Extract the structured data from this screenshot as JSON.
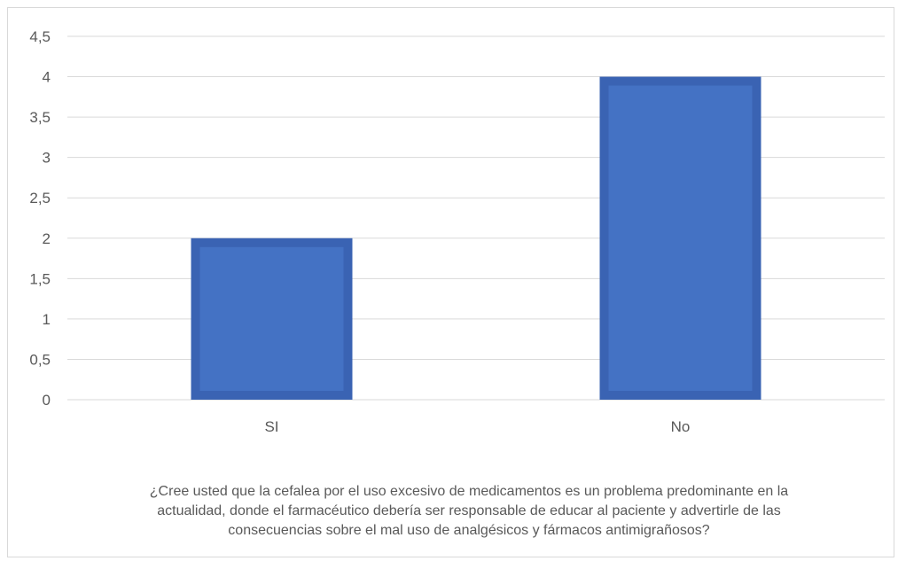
{
  "chart_data": {
    "type": "bar",
    "categories": [
      "SI",
      "No"
    ],
    "values": [
      2,
      4
    ],
    "title": "",
    "xlabel": "¿Cree usted que la cefalea por el uso excesivo de medicamentos es un problema predominante en la actualidad, donde el farmacéutico debería ser responsable de educar al paciente y advertirle de las consecuencias sobre el mal uso de analgésicos y fármacos antimigrañosos?",
    "ylabel": "",
    "ylim": [
      0,
      4.5
    ],
    "yticks": [
      "0",
      "0,5",
      "1",
      "1,5",
      "2",
      "2,5",
      "3",
      "3,5",
      "4",
      "4,5"
    ],
    "grid": true,
    "legend": "none",
    "colors": {
      "bar_fill": "#4472c4",
      "bar_border": "#3a63b3",
      "grid": "#d9d9d9",
      "text": "#595959"
    }
  }
}
